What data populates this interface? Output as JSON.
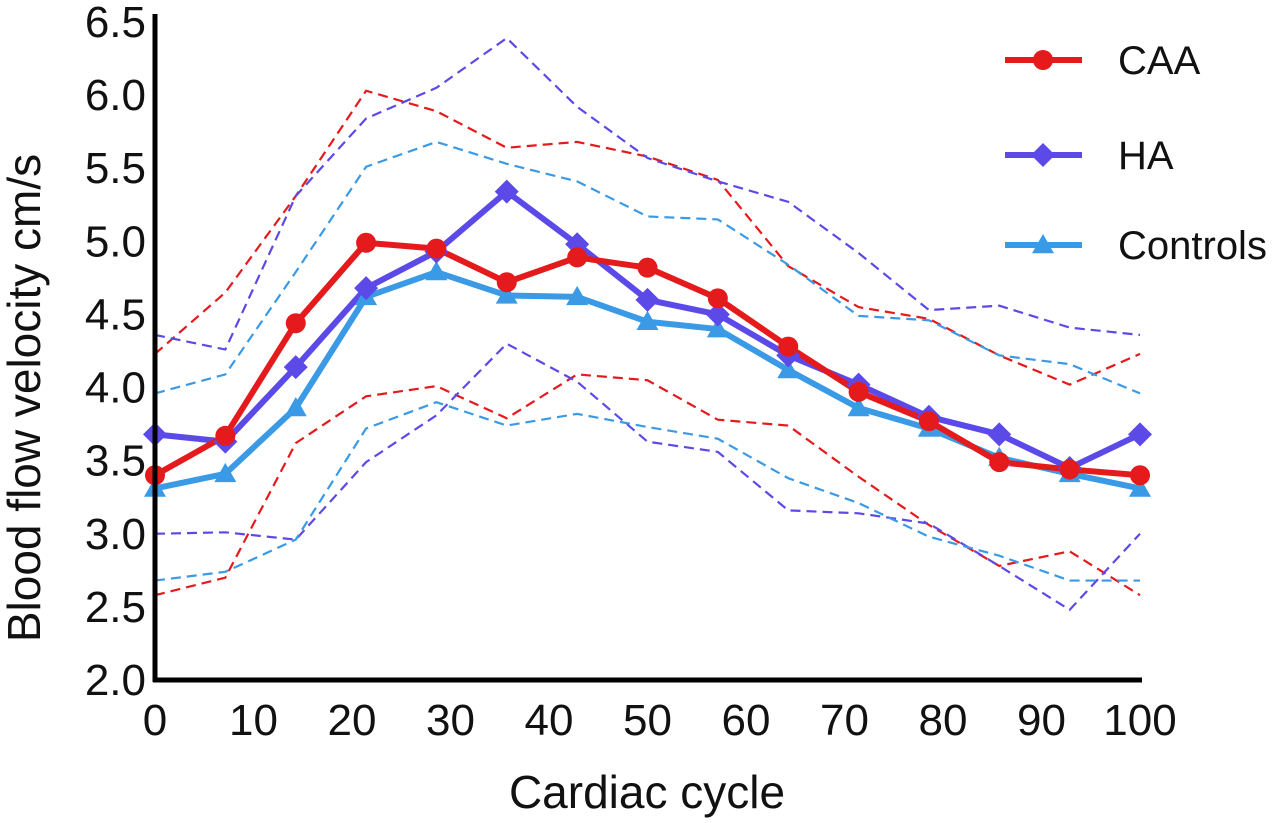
{
  "chart_data": {
    "type": "line",
    "xlabel": "Cardiac cycle",
    "ylabel": "Blood flow velocity cm/s",
    "xlim": [
      0,
      100
    ],
    "ylim": [
      2.0,
      6.5
    ],
    "xticks": [
      "0",
      "10",
      "20",
      "30",
      "40",
      "50",
      "60",
      "70",
      "80",
      "90",
      "100"
    ],
    "yticks": [
      "2.0",
      "2.5",
      "3.0",
      "3.5",
      "4.0",
      "4.5",
      "5.0",
      "5.5",
      "6.0",
      "6.5"
    ],
    "grid": false,
    "legend_position": "top-right",
    "x": [
      0,
      7.14,
      14.29,
      21.43,
      28.57,
      35.71,
      42.86,
      50,
      57.14,
      64.29,
      71.43,
      78.57,
      85.71,
      92.86,
      100
    ],
    "series": [
      {
        "name": "CAA",
        "color": "#e41a1c",
        "marker": "circle",
        "values": [
          3.4,
          3.67,
          4.44,
          4.99,
          4.95,
          4.72,
          4.89,
          4.82,
          4.61,
          4.28,
          3.97,
          3.77,
          3.49,
          3.44,
          3.4
        ],
        "upper": [
          4.23,
          4.65,
          5.31,
          6.03,
          5.89,
          5.64,
          5.68,
          5.58,
          5.42,
          4.83,
          4.55,
          4.47,
          4.22,
          4.02,
          4.23
        ],
        "lower": [
          2.58,
          2.7,
          3.62,
          3.94,
          4.01,
          3.79,
          4.09,
          4.05,
          3.78,
          3.74,
          3.39,
          3.06,
          2.78,
          2.88,
          2.58
        ]
      },
      {
        "name": "HA",
        "color": "#5b4ae8",
        "marker": "diamond",
        "values": [
          3.68,
          3.63,
          4.14,
          4.68,
          4.93,
          5.34,
          4.98,
          4.6,
          4.5,
          4.22,
          4.02,
          3.8,
          3.68,
          3.45,
          3.68
        ],
        "upper": [
          4.36,
          4.26,
          5.31,
          5.84,
          6.05,
          6.39,
          5.92,
          5.57,
          5.41,
          5.27,
          4.92,
          4.53,
          4.56,
          4.41,
          4.36
        ],
        "lower": [
          3.0,
          3.01,
          2.96,
          3.49,
          3.81,
          4.3,
          4.04,
          3.63,
          3.56,
          3.16,
          3.14,
          3.07,
          2.78,
          2.48,
          3.0
        ]
      },
      {
        "name": "Controls",
        "color": "#3a9ae6",
        "marker": "triangle",
        "values": [
          3.31,
          3.41,
          3.86,
          4.62,
          4.79,
          4.63,
          4.62,
          4.45,
          4.4,
          4.12,
          3.86,
          3.72,
          3.52,
          3.41,
          3.31
        ],
        "upper": [
          3.96,
          4.09,
          4.79,
          5.51,
          5.68,
          5.53,
          5.41,
          5.17,
          5.15,
          4.84,
          4.49,
          4.46,
          4.22,
          4.16,
          3.96
        ],
        "lower": [
          2.68,
          2.74,
          2.96,
          3.72,
          3.9,
          3.74,
          3.82,
          3.73,
          3.65,
          3.38,
          3.21,
          2.98,
          2.85,
          2.68,
          2.68
        ]
      }
    ]
  }
}
